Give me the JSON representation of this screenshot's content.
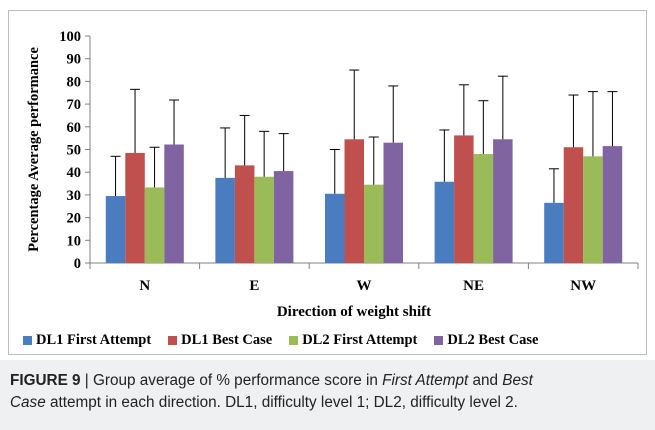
{
  "chart_data": {
    "type": "bar",
    "title": "",
    "xlabel": "Direction of weight shift",
    "ylabel": "Percentage Average performance",
    "ylim": [
      0,
      100
    ],
    "yticks": [
      0,
      10,
      20,
      30,
      40,
      50,
      60,
      70,
      80,
      90,
      100
    ],
    "categories": [
      "N",
      "E",
      "W",
      "NE",
      "NW"
    ],
    "error_bars": "upper",
    "grid": false,
    "legend_position": "bottom",
    "series": [
      {
        "name": "DL1 First Attempt",
        "color": "#4a7dbf",
        "values": [
          29.5,
          37.5,
          30.5,
          35.8,
          26.5
        ],
        "errors": [
          17.5,
          22.0,
          19.5,
          22.8,
          15.0
        ]
      },
      {
        "name": "DL1 Best Case",
        "color": "#c0504d",
        "values": [
          48.5,
          43.0,
          54.5,
          56.2,
          51.0
        ],
        "errors": [
          28.0,
          22.0,
          30.5,
          22.3,
          23.0
        ]
      },
      {
        "name": "DL2 First Attempt",
        "color": "#9bbb59",
        "values": [
          33.3,
          38.0,
          34.5,
          48.0,
          47.0
        ],
        "errors": [
          17.7,
          20.0,
          21.0,
          23.5,
          28.5
        ]
      },
      {
        "name": "DL2 Best Case",
        "color": "#8064a2",
        "values": [
          52.2,
          40.5,
          53.0,
          54.5,
          51.5
        ],
        "errors": [
          19.6,
          16.5,
          25.0,
          27.8,
          24.0
        ]
      }
    ]
  },
  "caption": {
    "label": "FIGURE 9",
    "separator": " | ",
    "text_1": "Group average of % performance score in ",
    "italic_1": "First Attempt",
    "text_2": " and ",
    "italic_2": "Best",
    "italic_3": "Case",
    "text_3": " attempt in each direction. DL1, difficulty level 1; DL2, difficulty level 2."
  }
}
